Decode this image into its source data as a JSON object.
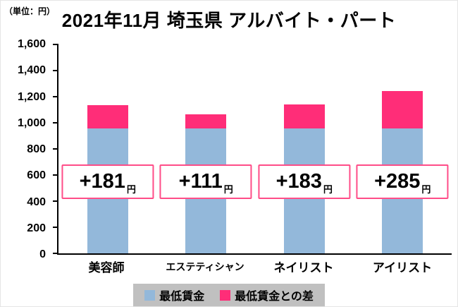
{
  "unit_label": "（単位：円）",
  "title": "2021年11月 埼玉県 アルバイト・パート",
  "chart_data": {
    "type": "bar",
    "stacked": true,
    "title": "2021年11月 埼玉県 アルバイト・パート",
    "unit": "円",
    "categories": [
      "美容師",
      "エステティシャン",
      "ネイリスト",
      "アイリスト"
    ],
    "series": [
      {
        "name": "最低賃金",
        "color": "#93b8da",
        "values": [
          956,
          956,
          956,
          956
        ]
      },
      {
        "name": "最低賃金との差",
        "color": "#ff2d78",
        "values": [
          181,
          111,
          183,
          285
        ]
      }
    ],
    "totals": [
      1137,
      1067,
      1139,
      1241
    ],
    "annotations": [
      {
        "value": "+181",
        "suffix": "円"
      },
      {
        "value": "+111",
        "suffix": "円"
      },
      {
        "value": "+183",
        "suffix": "円"
      },
      {
        "value": "+285",
        "suffix": "円"
      }
    ],
    "ylim": [
      0,
      1600
    ],
    "yticks": [
      0,
      200,
      400,
      600,
      800,
      1000,
      1200,
      1400,
      1600
    ],
    "ytick_labels": [
      "0",
      "200",
      "400",
      "600",
      "800",
      "1,000",
      "1,200",
      "1,400",
      "1,600"
    ],
    "legend_position": "bottom",
    "grid": false
  },
  "legend": {
    "items": [
      {
        "label": "最低賃金",
        "color": "#93b8da"
      },
      {
        "label": "最低賃金との差",
        "color": "#ff2d78"
      }
    ]
  }
}
